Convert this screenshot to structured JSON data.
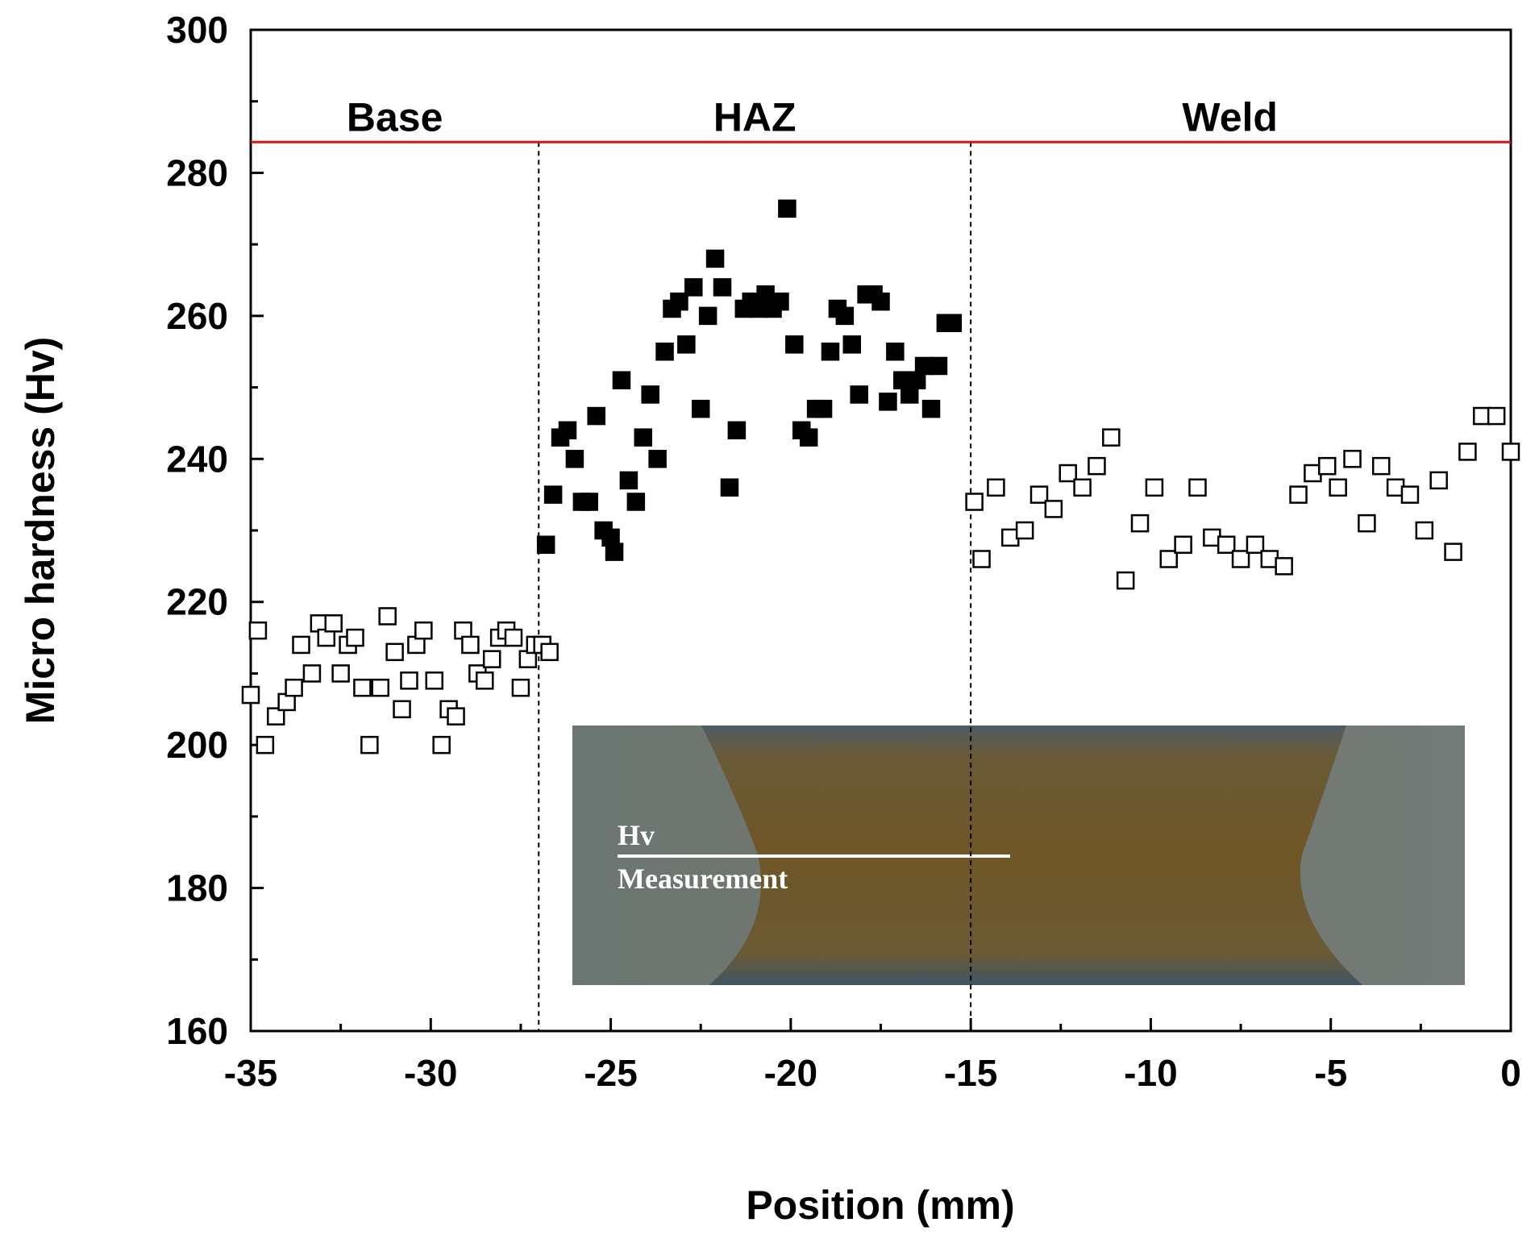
{
  "chart_data": {
    "type": "scatter",
    "xlabel": "Position (mm)",
    "ylabel": "Micro hardness (Hv)",
    "xlim": [
      -35,
      0
    ],
    "ylim": [
      160,
      300
    ],
    "x_ticks": [
      -35,
      -30,
      -25,
      -20,
      -15,
      -10,
      -5,
      0
    ],
    "y_ticks": [
      160,
      180,
      200,
      220,
      240,
      260,
      280,
      300
    ],
    "x_tick_labels": [
      "-35",
      "-30",
      "-25",
      "-20",
      "-15",
      "-10",
      "-5",
      "0"
    ],
    "y_tick_labels": [
      "160",
      "180",
      "200",
      "220",
      "240",
      "260",
      "280",
      "300"
    ],
    "regions": [
      {
        "label": "Base",
        "x_center": -31.0
      },
      {
        "label": "HAZ",
        "x_center": -21.0
      },
      {
        "label": "Weld",
        "x_center": -7.8
      }
    ],
    "boundaries_x": [
      -27.0,
      -15.0
    ],
    "reference_line_y": 284.3,
    "reference_line_color": "#e01010",
    "series": [
      {
        "marker": "open-square",
        "points": [
          [
            -35.0,
            207
          ],
          [
            -34.8,
            216
          ],
          [
            -34.6,
            200
          ],
          [
            -34.3,
            204
          ],
          [
            -34.0,
            206
          ],
          [
            -33.8,
            208
          ],
          [
            -33.6,
            214
          ],
          [
            -33.3,
            210
          ],
          [
            -33.1,
            217
          ],
          [
            -32.9,
            215
          ],
          [
            -32.7,
            217
          ],
          [
            -32.5,
            210
          ],
          [
            -32.3,
            214
          ],
          [
            -32.1,
            215
          ],
          [
            -31.9,
            208
          ],
          [
            -31.7,
            200
          ],
          [
            -31.4,
            208
          ],
          [
            -31.2,
            218
          ],
          [
            -31.0,
            213
          ],
          [
            -30.8,
            205
          ],
          [
            -30.6,
            209
          ],
          [
            -30.4,
            214
          ],
          [
            -30.2,
            216
          ],
          [
            -29.9,
            209
          ],
          [
            -29.7,
            200
          ],
          [
            -29.5,
            205
          ],
          [
            -29.3,
            204
          ],
          [
            -29.1,
            216
          ],
          [
            -28.9,
            214
          ],
          [
            -28.7,
            210
          ],
          [
            -28.5,
            209
          ],
          [
            -28.3,
            212
          ],
          [
            -28.1,
            215
          ],
          [
            -27.9,
            216
          ],
          [
            -27.7,
            215
          ],
          [
            -27.5,
            208
          ],
          [
            -27.3,
            212
          ],
          [
            -27.1,
            214
          ],
          [
            -26.9,
            214
          ],
          [
            -26.7,
            213
          ]
        ]
      },
      {
        "marker": "filled-square",
        "points": [
          [
            -26.8,
            228
          ],
          [
            -26.6,
            235
          ],
          [
            -26.4,
            243
          ],
          [
            -26.2,
            244
          ],
          [
            -26.0,
            240
          ],
          [
            -25.8,
            234
          ],
          [
            -25.6,
            234
          ],
          [
            -25.4,
            246
          ],
          [
            -25.2,
            230
          ],
          [
            -25.0,
            229
          ],
          [
            -24.9,
            227
          ],
          [
            -24.7,
            251
          ],
          [
            -24.5,
            237
          ],
          [
            -24.3,
            234
          ],
          [
            -24.1,
            243
          ],
          [
            -23.9,
            249
          ],
          [
            -23.7,
            240
          ],
          [
            -23.5,
            255
          ],
          [
            -23.3,
            261
          ],
          [
            -23.1,
            262
          ],
          [
            -22.9,
            256
          ],
          [
            -22.7,
            264
          ],
          [
            -22.5,
            247
          ],
          [
            -22.3,
            260
          ],
          [
            -22.1,
            268
          ],
          [
            -21.9,
            264
          ],
          [
            -21.7,
            236
          ],
          [
            -21.5,
            244
          ],
          [
            -21.3,
            261
          ],
          [
            -21.1,
            262
          ],
          [
            -20.9,
            261
          ],
          [
            -20.7,
            263
          ],
          [
            -20.5,
            261
          ],
          [
            -20.3,
            262
          ],
          [
            -20.1,
            275
          ],
          [
            -19.9,
            256
          ],
          [
            -19.7,
            244
          ],
          [
            -19.5,
            243
          ],
          [
            -19.3,
            247
          ],
          [
            -19.1,
            247
          ],
          [
            -18.9,
            255
          ],
          [
            -18.7,
            261
          ],
          [
            -18.5,
            260
          ],
          [
            -18.3,
            256
          ],
          [
            -18.1,
            249
          ],
          [
            -17.9,
            263
          ],
          [
            -17.7,
            263
          ],
          [
            -17.5,
            262
          ],
          [
            -17.3,
            248
          ],
          [
            -17.1,
            255
          ],
          [
            -16.9,
            251
          ],
          [
            -16.7,
            249
          ],
          [
            -16.5,
            251
          ],
          [
            -16.3,
            253
          ],
          [
            -16.1,
            247
          ],
          [
            -15.9,
            253
          ],
          [
            -15.7,
            259
          ],
          [
            -15.5,
            259
          ]
        ]
      },
      {
        "marker": "open-square",
        "points": [
          [
            -14.9,
            234
          ],
          [
            -14.7,
            226
          ],
          [
            -14.3,
            236
          ],
          [
            -13.9,
            229
          ],
          [
            -13.5,
            230
          ],
          [
            -13.1,
            235
          ],
          [
            -12.7,
            233
          ],
          [
            -12.3,
            238
          ],
          [
            -11.9,
            236
          ],
          [
            -11.5,
            239
          ],
          [
            -11.1,
            243
          ],
          [
            -10.7,
            223
          ],
          [
            -10.3,
            231
          ],
          [
            -9.9,
            236
          ],
          [
            -9.5,
            226
          ],
          [
            -9.1,
            228
          ],
          [
            -8.7,
            236
          ],
          [
            -8.3,
            229
          ],
          [
            -7.9,
            228
          ],
          [
            -7.5,
            226
          ],
          [
            -7.1,
            228
          ],
          [
            -6.7,
            226
          ],
          [
            -6.3,
            225
          ],
          [
            -5.9,
            235
          ],
          [
            -5.5,
            238
          ],
          [
            -5.1,
            239
          ],
          [
            -4.8,
            236
          ],
          [
            -4.4,
            240
          ],
          [
            -4.0,
            231
          ],
          [
            -3.6,
            239
          ],
          [
            -3.2,
            236
          ],
          [
            -2.8,
            235
          ],
          [
            -2.4,
            230
          ],
          [
            -2.0,
            237
          ],
          [
            -1.6,
            227
          ],
          [
            -1.2,
            241
          ],
          [
            -0.8,
            246
          ],
          [
            -0.4,
            246
          ],
          [
            0.0,
            241
          ]
        ]
      }
    ],
    "inset": {
      "texts": [
        "Hv",
        "Measurement"
      ]
    }
  }
}
